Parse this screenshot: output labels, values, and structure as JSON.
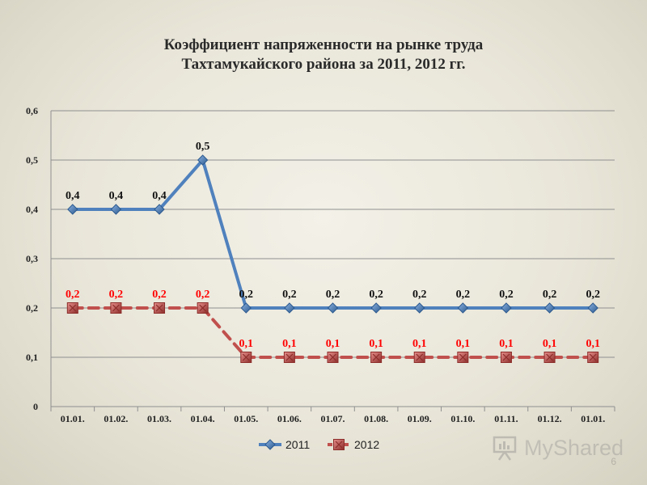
{
  "page": {
    "title_line1": "Коэффициент напряженности на рынке труда",
    "title_line2": "Тахтамукайского района за 2011, 2012 гг.",
    "watermark": "MyShared",
    "page_number": "6"
  },
  "colors": {
    "series_2011": "#4f81bd",
    "series_2011_dark": "#2c5a8f",
    "series_2012": "#c0504d",
    "series_2012_dark": "#8c2d2a",
    "label_2012": "#ff0000",
    "gridline": "#8f8f8f"
  },
  "chart_data": {
    "type": "line",
    "title": "Коэффициент напряженности на рынке труда Тахтамукайского района за 2011, 2012 гг.",
    "categories": [
      "01.01.",
      "01.02.",
      "01.03.",
      "01.04.",
      "01.05.",
      "01.06.",
      "01.07.",
      "01.08.",
      "01.09.",
      "01.10.",
      "01.11.",
      "01.12.",
      "01.01."
    ],
    "ylim": [
      0,
      0.6
    ],
    "yticks": [
      "0",
      "0,1",
      "0,2",
      "0,3",
      "0,4",
      "0,5",
      "0,6"
    ],
    "grid": true,
    "legend_position": "bottom",
    "series": [
      {
        "name": "2011",
        "values": [
          0.4,
          0.4,
          0.4,
          0.5,
          0.2,
          0.2,
          0.2,
          0.2,
          0.2,
          0.2,
          0.2,
          0.2,
          0.2
        ],
        "labels": [
          "0,4",
          "0,4",
          "0,4",
          "0,5",
          "0,2",
          "0,2",
          "0,2",
          "0,2",
          "0,2",
          "0,2",
          "0,2",
          "0,2",
          "0,2"
        ],
        "marker": "diamond",
        "line": "solid"
      },
      {
        "name": "2012",
        "values": [
          0.2,
          0.2,
          0.2,
          0.2,
          0.1,
          0.1,
          0.1,
          0.1,
          0.1,
          0.1,
          0.1,
          0.1,
          0.1
        ],
        "labels": [
          "0,2",
          "0,2",
          "0,2",
          "0,2",
          "0,1",
          "0,1",
          "0,1",
          "0,1",
          "0,1",
          "0,1",
          "0,1",
          "0,1",
          "0,1"
        ],
        "marker": "square",
        "line": "dashed"
      }
    ]
  }
}
